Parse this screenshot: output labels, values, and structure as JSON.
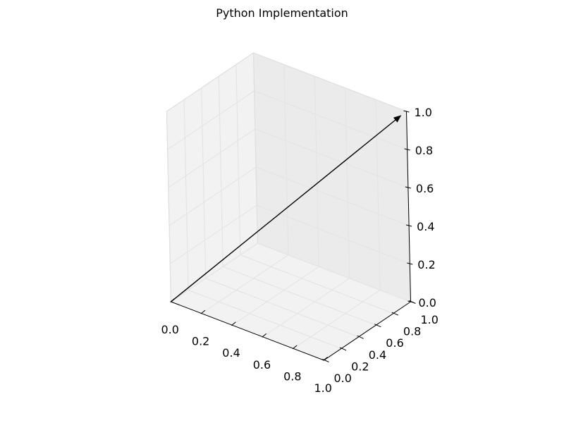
{
  "chart_data": {
    "type": "line",
    "title": "Python Implementation",
    "xlabel": "",
    "ylabel": "",
    "zlabel": "",
    "projection": "3d",
    "grid": true,
    "xlim": [
      0,
      1
    ],
    "ylim": [
      0,
      1
    ],
    "zlim": [
      0,
      1
    ],
    "x_ticks": [
      "0.0",
      "0.2",
      "0.4",
      "0.6",
      "0.8",
      "1.0"
    ],
    "y_ticks": [
      "0.0",
      "0.2",
      "0.4",
      "0.6",
      "0.8",
      "1.0"
    ],
    "z_ticks": [
      "0.0",
      "0.2",
      "0.4",
      "0.6",
      "0.8",
      "1.0"
    ],
    "series": [
      {
        "kind": "arrow",
        "start": [
          0,
          0,
          0
        ],
        "end": [
          1,
          1,
          1
        ],
        "color": "#000000"
      }
    ]
  }
}
